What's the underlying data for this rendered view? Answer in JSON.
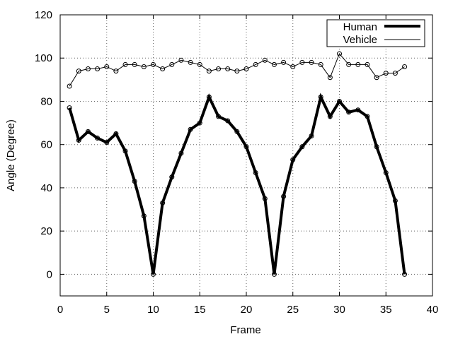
{
  "chart_data": {
    "type": "line",
    "title": "",
    "xlabel": "Frame",
    "ylabel": "Angle (Degree)",
    "xlim": [
      0,
      40
    ],
    "ylim": [
      -10,
      120
    ],
    "xticks": [
      0,
      5,
      10,
      15,
      20,
      25,
      30,
      35,
      40
    ],
    "yticks": [
      0,
      20,
      40,
      60,
      80,
      100,
      120
    ],
    "grid": true,
    "legend_position": "top-right",
    "series": [
      {
        "name": "Human",
        "color": "#000000",
        "style": "thick",
        "x": [
          1,
          2,
          3,
          4,
          5,
          6,
          7,
          8,
          9,
          10,
          11,
          12,
          13,
          14,
          15,
          16,
          17,
          18,
          19,
          20,
          21,
          22,
          23,
          24,
          25,
          26,
          27,
          28,
          29,
          30,
          31,
          32,
          33,
          34,
          35,
          36,
          37
        ],
        "values": [
          77,
          62,
          66,
          63,
          61,
          65,
          57,
          43,
          27,
          0,
          33,
          45,
          56,
          67,
          70,
          82,
          73,
          71,
          66,
          59,
          47,
          35,
          0,
          36,
          53,
          59,
          64,
          82,
          73,
          80,
          75,
          76,
          73,
          59,
          47,
          34,
          0
        ]
      },
      {
        "name": "Vehicle",
        "color": "#000000",
        "style": "thin",
        "x": [
          1,
          2,
          3,
          4,
          5,
          6,
          7,
          8,
          9,
          10,
          11,
          12,
          13,
          14,
          15,
          16,
          17,
          18,
          19,
          20,
          21,
          22,
          23,
          24,
          25,
          26,
          27,
          28,
          29,
          30,
          31,
          32,
          33,
          34,
          35,
          36,
          37
        ],
        "values": [
          87,
          94,
          95,
          95,
          96,
          94,
          97,
          97,
          96,
          97,
          95,
          97,
          99,
          98,
          97,
          94,
          95,
          95,
          94,
          95,
          97,
          99,
          97,
          98,
          96,
          98,
          98,
          97,
          91,
          102,
          97,
          97,
          97,
          91,
          93,
          93,
          96
        ]
      }
    ]
  }
}
